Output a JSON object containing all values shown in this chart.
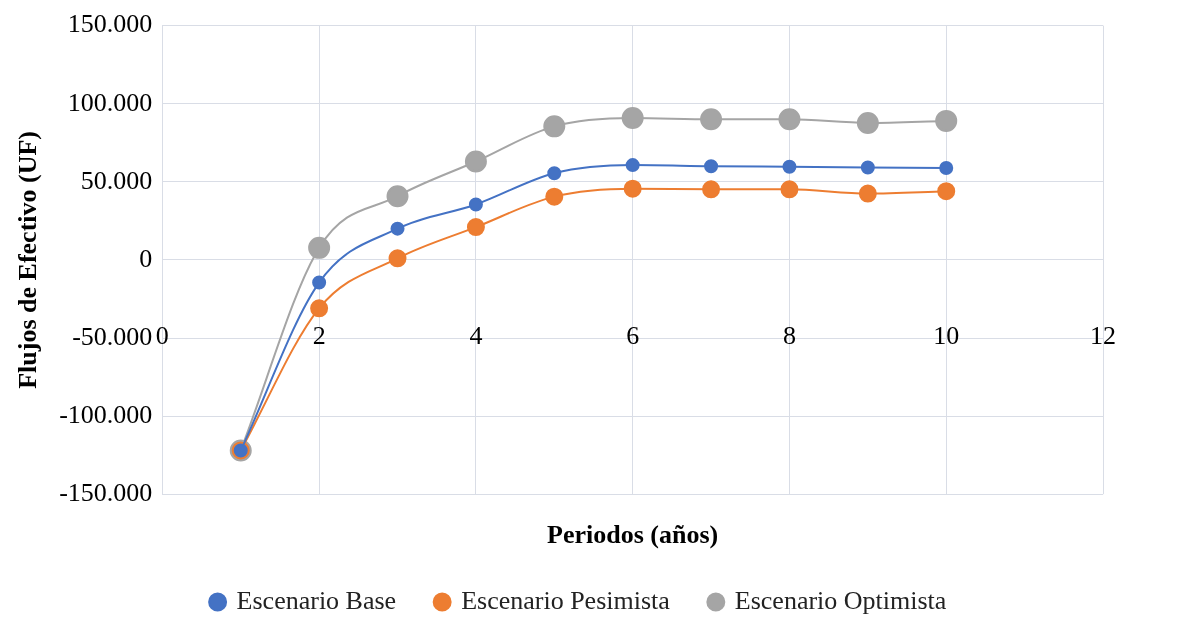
{
  "chart_data": {
    "type": "line",
    "xlabel": "Periodos (años)",
    "ylabel": "Flujos de Efectivo (UF)",
    "x": [
      1,
      2,
      3,
      4,
      5,
      6,
      7,
      8,
      9,
      10
    ],
    "series": [
      {
        "name": "Escenario Base",
        "color": "#4472c4",
        "values": [
          -122000,
          -14500,
          20000,
          35500,
          55500,
          60700,
          60000,
          59600,
          59200,
          58800
        ]
      },
      {
        "name": "Escenario Pesimista",
        "color": "#ed7d31",
        "values": [
          -122000,
          -31000,
          1000,
          21000,
          40500,
          45600,
          45200,
          45200,
          42500,
          44000
        ]
      },
      {
        "name": "Escenario Optimista",
        "color": "#a5a5a5",
        "values": [
          -122000,
          7700,
          40800,
          63000,
          85500,
          90800,
          90000,
          90000,
          87700,
          89000
        ]
      }
    ],
    "xlim": [
      0,
      12
    ],
    "xticks": [
      0,
      2,
      4,
      6,
      8,
      10,
      12
    ],
    "ylim": [
      -150000,
      150000
    ],
    "yticks": [
      {
        "value": -150000,
        "label": "-150.000"
      },
      {
        "value": -100000,
        "label": "-100.000"
      },
      {
        "value": -50000,
        "label": "-50.000"
      },
      {
        "value": 0,
        "label": "0"
      },
      {
        "value": 50000,
        "label": "50.000"
      },
      {
        "value": 100000,
        "label": "100.000"
      },
      {
        "value": 150000,
        "label": "150.000"
      }
    ],
    "grid": true,
    "legend": "bottom",
    "marker": "circle",
    "line_style": "solid"
  }
}
